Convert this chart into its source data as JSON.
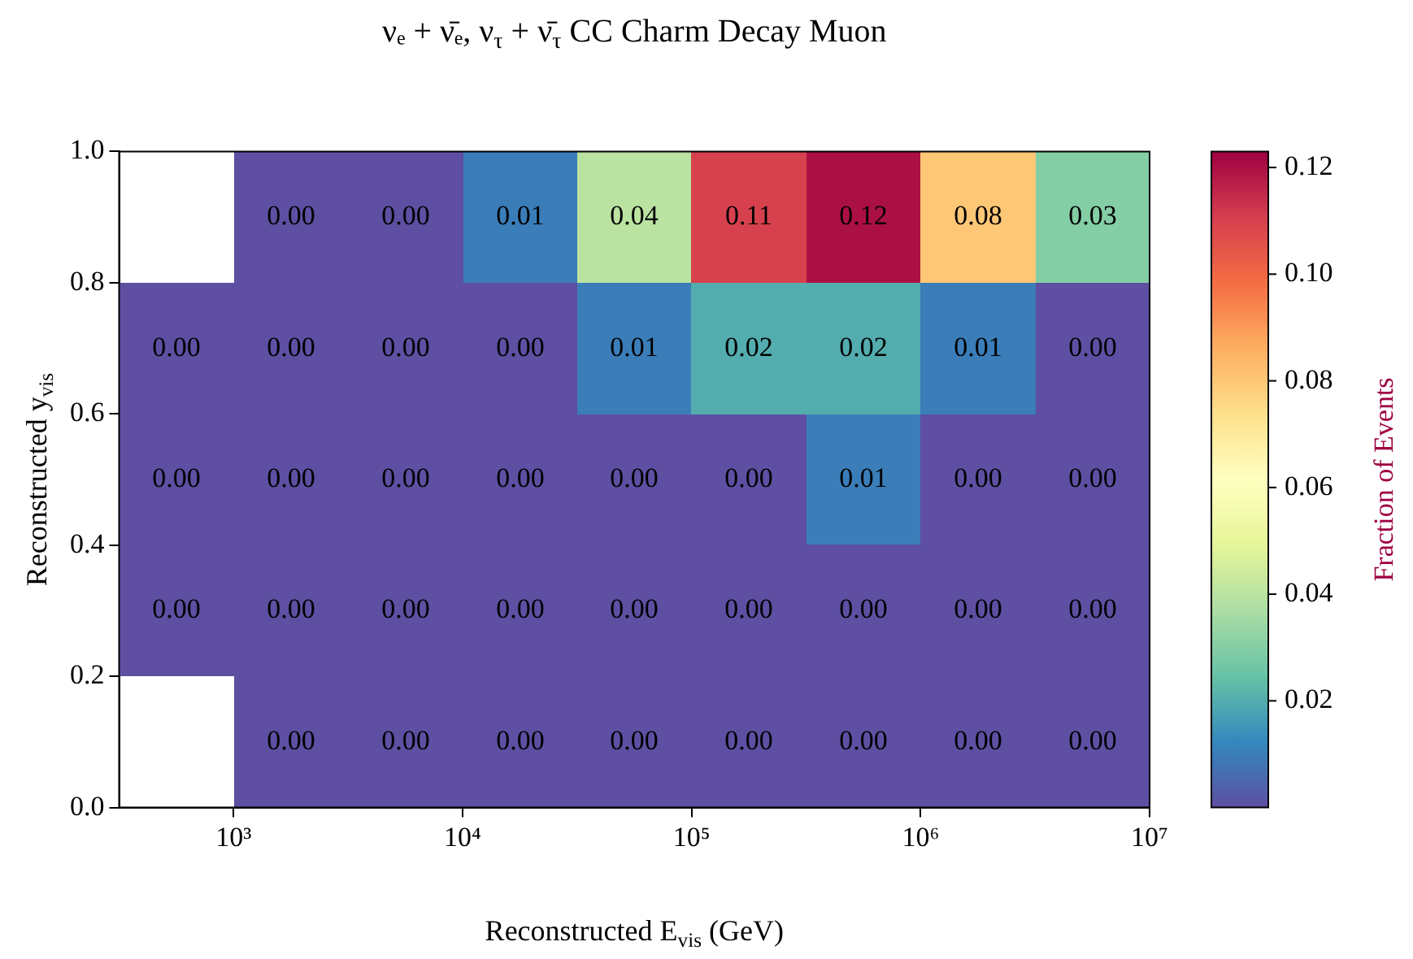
{
  "chart_data": {
    "type": "heatmap",
    "title": "νₑ + ν̄ₑ, ν$_{τ}$ + ν̄$_{τ}$ CC Charm Decay Muon",
    "xlabel": "Reconstructed E$_{vis}$ (GeV)",
    "ylabel": "Reconstructed y$_{vis}$",
    "clabel": "Fraction of Events",
    "log": "x",
    "x": [
      562,
      1778,
      5623,
      17783,
      56234,
      177828,
      562341,
      1778279,
      5623413
    ],
    "y": [
      0.9,
      0.7,
      0.5,
      0.3,
      0.1
    ],
    "xlim": [
      316,
      10000000
    ],
    "xticks": [
      {
        "value": 1000,
        "label": "10³"
      },
      {
        "value": 10000,
        "label": "10⁴"
      },
      {
        "value": 100000,
        "label": "10⁵"
      },
      {
        "value": 1000000,
        "label": "10⁶"
      },
      {
        "value": 10000000,
        "label": "10⁷"
      }
    ],
    "ylim": [
      0,
      1
    ],
    "yticks": [
      {
        "value": 0,
        "label": "0.0"
      },
      0.2,
      0.4,
      0.6,
      0.8,
      {
        "value": 1,
        "label": "1.0"
      }
    ],
    "cells": [
      [
        null,
        0.0,
        0.0,
        0.01,
        0.04,
        0.11,
        0.12,
        0.08,
        0.03
      ],
      [
        0.0,
        0.0,
        0.0,
        0.0,
        0.01,
        0.02,
        0.02,
        0.01,
        0.0
      ],
      [
        0.0,
        0.0,
        0.0,
        0.0,
        0.0,
        0.0,
        0.01,
        0.0,
        0.0
      ],
      [
        0.0,
        0.0,
        0.0,
        0.0,
        0.0,
        0.0,
        0.0,
        0.0,
        0.0
      ],
      [
        null,
        0.0,
        0.0,
        0.0,
        0.0,
        0.0,
        0.0,
        0.0,
        0.0
      ]
    ],
    "cell_labels": [
      [
        null,
        "0.00",
        "0.00",
        "0.01",
        "0.04",
        "0.11",
        "0.12",
        "0.08",
        "0.03"
      ],
      [
        "0.00",
        "0.00",
        "0.00",
        "0.00",
        "0.01",
        "0.02",
        "0.02",
        "0.01",
        "0.00"
      ],
      [
        "0.00",
        "0.00",
        "0.00",
        "0.00",
        "0.00",
        "0.00",
        "0.01",
        "0.00",
        "0.00"
      ],
      [
        "0.00",
        "0.00",
        "0.00",
        "0.00",
        "0.00",
        "0.00",
        "0.00",
        "0.00",
        "0.00"
      ],
      [
        null,
        "0.00",
        "0.00",
        "0.00",
        "0.00",
        "0.00",
        "0.00",
        "0.00",
        "0.00"
      ]
    ],
    "clim": [
      0,
      0.123
    ],
    "cticks": [
      {
        "value": 0.02,
        "label": "0.02"
      },
      {
        "value": 0.04,
        "label": "0.04"
      },
      {
        "value": 0.06,
        "label": "0.06"
      },
      {
        "value": 0.08,
        "label": "0.08"
      },
      {
        "value": 0.1,
        "label": "0.10"
      },
      {
        "value": 0.12,
        "label": "0.12"
      }
    ],
    "colors": [
      "#5e4fa2",
      "#3288bd",
      "#66c2a5",
      "#abdda4",
      "#e6f598",
      "#ffffbf",
      "#fee08b",
      "#fdae61",
      "#f46d43",
      "#d53e4f",
      "#9e0142"
    ]
  }
}
